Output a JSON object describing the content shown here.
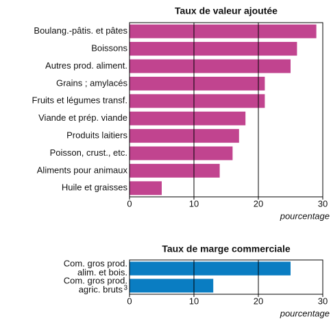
{
  "chart_data": [
    {
      "type": "bar",
      "orientation": "horizontal",
      "title": "Taux de valeur ajoutée",
      "categories": [
        [
          "Boulang.-pâtis. et pâtes"
        ],
        [
          "Boissons"
        ],
        [
          "Autres prod. aliment."
        ],
        [
          "Grains ; amylacés"
        ],
        [
          "Fruits et légumes transf."
        ],
        [
          "Viande et prép. viande"
        ],
        [
          "Produits laitiers"
        ],
        [
          "Poisson, crust., etc."
        ],
        [
          "Aliments pour animaux"
        ],
        [
          "Huile et graisses"
        ]
      ],
      "values": [
        29,
        26,
        25,
        21,
        21,
        18,
        17,
        16,
        14,
        5
      ],
      "color": "#c1448f",
      "xlim": [
        0,
        30
      ],
      "xticks": [
        0,
        10,
        20,
        30
      ],
      "grid": true,
      "x_label": "pourcentage"
    },
    {
      "type": "bar",
      "orientation": "horizontal",
      "title": "Taux de marge commerciale",
      "categories": [
        [
          "Com. gros prod.",
          "alim. et bois."
        ],
        [
          "Com. gros prod.",
          "agric. bruts"
        ]
      ],
      "category_superscripts": [
        null,
        "3"
      ],
      "values": [
        25,
        13
      ],
      "color": "#0a7dc2",
      "xlim": [
        0,
        30
      ],
      "xticks": [
        0,
        10,
        20,
        30
      ],
      "grid": true,
      "x_label": "pourcentage"
    }
  ]
}
